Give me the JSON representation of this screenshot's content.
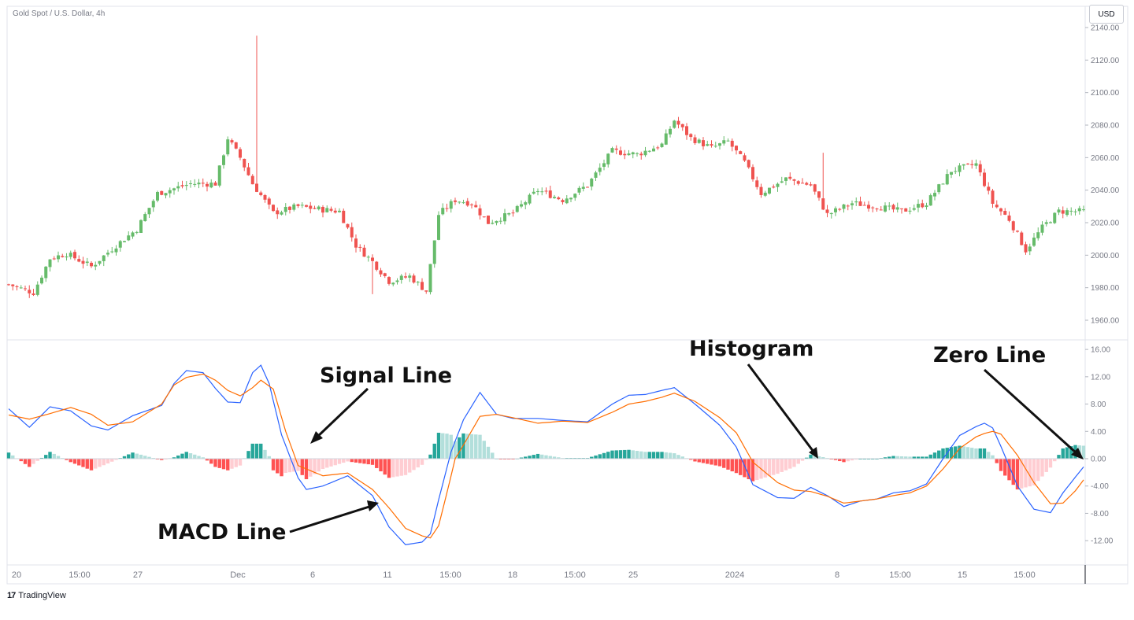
{
  "header": {
    "symbol": "Gold Spot / U.S. Dollar, 4h"
  },
  "currency_button": "USD",
  "brand": {
    "logo": "17",
    "name": "TradingView"
  },
  "colors": {
    "up": "#66bb6a",
    "down": "#ef5350",
    "macd": "#2962ff",
    "signal": "#ff6d00",
    "hist_pos_strong": "#26a69a",
    "hist_pos_weak": "#b2dfdb",
    "hist_neg_strong": "#ff5252",
    "hist_neg_weak": "#ffcdd2"
  },
  "annotations": {
    "signal_line": "Signal Line",
    "macd_line": "MACD Line",
    "histogram": "Histogram",
    "zero_line": "Zero Line"
  },
  "chart_data": [
    {
      "type": "candlestick",
      "title": "Gold Spot / U.S. Dollar, 4h",
      "ylim": [
        1945,
        2145
      ],
      "y_ticks": [
        "2140.00",
        "2120.00",
        "2100.00",
        "2080.00",
        "2060.00",
        "2040.00",
        "2020.00",
        "2000.00",
        "1980.00",
        "1960.00"
      ],
      "price_anchors": [
        [
          0,
          1982
        ],
        [
          6,
          1977
        ],
        [
          10,
          1998
        ],
        [
          14,
          2001
        ],
        [
          20,
          1993
        ],
        [
          26,
          2006
        ],
        [
          31,
          2016
        ],
        [
          36,
          2038
        ],
        [
          44,
          2044
        ],
        [
          50,
          2044
        ],
        [
          53,
          2072
        ],
        [
          56,
          2060
        ],
        [
          59,
          2044
        ],
        [
          64,
          2026
        ],
        [
          70,
          2030
        ],
        [
          76,
          2028
        ],
        [
          80,
          2027
        ],
        [
          84,
          2006
        ],
        [
          88,
          1996
        ],
        [
          92,
          1984
        ],
        [
          97,
          1987
        ],
        [
          101,
          1978
        ],
        [
          104,
          2025
        ],
        [
          108,
          2034
        ],
        [
          112,
          2032
        ],
        [
          116,
          2020
        ],
        [
          122,
          2026
        ],
        [
          128,
          2040
        ],
        [
          134,
          2034
        ],
        [
          140,
          2043
        ],
        [
          146,
          2064
        ],
        [
          152,
          2062
        ],
        [
          158,
          2068
        ],
        [
          161,
          2083
        ],
        [
          165,
          2072
        ],
        [
          170,
          2066
        ],
        [
          174,
          2070
        ],
        [
          178,
          2057
        ],
        [
          182,
          2038
        ],
        [
          188,
          2047
        ],
        [
          194,
          2043
        ],
        [
          198,
          2025
        ],
        [
          204,
          2032
        ],
        [
          210,
          2030
        ],
        [
          216,
          2027
        ],
        [
          222,
          2032
        ],
        [
          228,
          2052
        ],
        [
          234,
          2056
        ],
        [
          238,
          2032
        ],
        [
          242,
          2022
        ],
        [
          246,
          2003
        ],
        [
          250,
          2017
        ],
        [
          254,
          2027
        ]
      ]
    },
    {
      "type": "line",
      "title": "MACD",
      "ylim": [
        -15,
        16.5
      ],
      "y_ticks": [
        "16.00",
        "12.00",
        "8.00",
        "4.00",
        "0.00",
        "-4.00",
        "-8.00",
        "-12.00"
      ],
      "x_ticks": [
        "20",
        "15:00",
        "27",
        "Dec",
        "6",
        "11",
        "15:00",
        "18",
        "15:00",
        "25",
        "2024",
        "8",
        "15:00",
        "15",
        "15:00"
      ],
      "macd_anchors": [
        [
          0,
          7.3
        ],
        [
          5,
          4.6
        ],
        [
          10,
          7.6
        ],
        [
          15,
          7
        ],
        [
          20,
          4.8
        ],
        [
          24,
          4.2
        ],
        [
          30,
          6.3
        ],
        [
          37,
          7.8
        ],
        [
          40,
          11
        ],
        [
          43,
          12.9
        ],
        [
          47,
          12.6
        ],
        [
          50,
          10.3
        ],
        [
          53,
          8.3
        ],
        [
          56,
          8.2
        ],
        [
          59,
          12.6
        ],
        [
          61,
          13.7
        ],
        [
          63,
          11
        ],
        [
          66,
          3.5
        ],
        [
          70,
          -2.8
        ],
        [
          72,
          -4.5
        ],
        [
          76,
          -4
        ],
        [
          82,
          -2.5
        ],
        [
          88,
          -5.4
        ],
        [
          92,
          -10
        ],
        [
          96,
          -12.6
        ],
        [
          100,
          -12.2
        ],
        [
          102,
          -11
        ],
        [
          104,
          -6
        ],
        [
          107,
          1
        ],
        [
          110,
          5.7
        ],
        [
          114,
          9.7
        ],
        [
          118,
          6.5
        ],
        [
          122,
          5.9
        ],
        [
          128,
          5.9
        ],
        [
          134,
          5.6
        ],
        [
          140,
          5.4
        ],
        [
          146,
          8
        ],
        [
          150,
          9.3
        ],
        [
          154,
          9.4
        ],
        [
          158,
          10
        ],
        [
          161,
          10.4
        ],
        [
          166,
          8
        ],
        [
          172,
          4.9
        ],
        [
          176,
          1.7
        ],
        [
          180,
          -3.8
        ],
        [
          186,
          -5.7
        ],
        [
          190,
          -5.8
        ],
        [
          194,
          -4.2
        ],
        [
          198,
          -5.4
        ],
        [
          202,
          -7
        ],
        [
          206,
          -6.2
        ],
        [
          210,
          -5.9
        ],
        [
          214,
          -5
        ],
        [
          218,
          -4.7
        ],
        [
          222,
          -3.7
        ],
        [
          226,
          0
        ],
        [
          230,
          3.4
        ],
        [
          234,
          4.7
        ],
        [
          236,
          5.2
        ],
        [
          238,
          4.5
        ],
        [
          240,
          1.8
        ],
        [
          244,
          -4
        ],
        [
          248,
          -7.4
        ],
        [
          252,
          -7.9
        ],
        [
          255,
          -5
        ],
        [
          258,
          -2.7
        ],
        [
          260,
          -1.2
        ]
      ],
      "signal_anchors": [
        [
          0,
          6.4
        ],
        [
          5,
          5.8
        ],
        [
          10,
          6.6
        ],
        [
          15,
          7.5
        ],
        [
          20,
          6.5
        ],
        [
          24,
          4.9
        ],
        [
          30,
          5.4
        ],
        [
          37,
          8
        ],
        [
          40,
          10.8
        ],
        [
          43,
          11.9
        ],
        [
          47,
          12.4
        ],
        [
          50,
          11.5
        ],
        [
          53,
          10
        ],
        [
          56,
          9.2
        ],
        [
          59,
          10.4
        ],
        [
          61,
          11.5
        ],
        [
          64,
          10.2
        ],
        [
          67,
          4
        ],
        [
          70,
          -1
        ],
        [
          72,
          -1.5
        ],
        [
          76,
          -2.5
        ],
        [
          82,
          -2.1
        ],
        [
          88,
          -4.5
        ],
        [
          92,
          -7.2
        ],
        [
          96,
          -10.2
        ],
        [
          100,
          -11.3
        ],
        [
          102,
          -11.6
        ],
        [
          104,
          -9.8
        ],
        [
          106,
          -5
        ],
        [
          108,
          0
        ],
        [
          110,
          2
        ],
        [
          114,
          6.2
        ],
        [
          118,
          6.5
        ],
        [
          122,
          6
        ],
        [
          128,
          5.2
        ],
        [
          134,
          5.5
        ],
        [
          140,
          5.3
        ],
        [
          146,
          6.8
        ],
        [
          150,
          8
        ],
        [
          154,
          8.4
        ],
        [
          158,
          9
        ],
        [
          161,
          9.6
        ],
        [
          166,
          8.4
        ],
        [
          172,
          6
        ],
        [
          176,
          3.8
        ],
        [
          180,
          -0.5
        ],
        [
          186,
          -3.5
        ],
        [
          190,
          -4.6
        ],
        [
          194,
          -4.8
        ],
        [
          198,
          -5.5
        ],
        [
          202,
          -6.5
        ],
        [
          206,
          -6.2
        ],
        [
          210,
          -5.9
        ],
        [
          214,
          -5.4
        ],
        [
          218,
          -5
        ],
        [
          222,
          -4
        ],
        [
          226,
          -1.5
        ],
        [
          230,
          1.5
        ],
        [
          234,
          3.2
        ],
        [
          236,
          3.7
        ],
        [
          238,
          4
        ],
        [
          240,
          3.6
        ],
        [
          244,
          0.5
        ],
        [
          248,
          -3.5
        ],
        [
          252,
          -6.6
        ],
        [
          255,
          -6.5
        ],
        [
          258,
          -4.7
        ],
        [
          260,
          -3.1
        ]
      ],
      "histogram": "MACD line minus signal line, shown per bar (teal above zero, red below)"
    }
  ]
}
